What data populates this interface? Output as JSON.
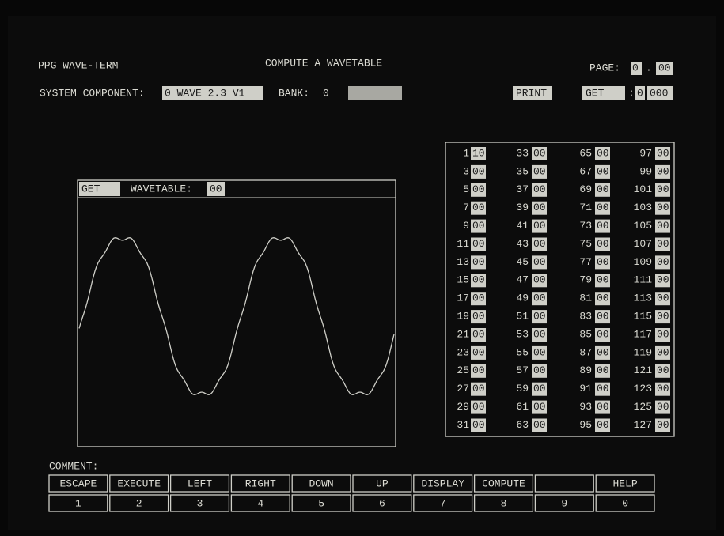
{
  "header": {
    "app_title": "PPG WAVE-TERM",
    "screen_title": "COMPUTE A WAVETABLE",
    "page_label": "PAGE:",
    "page_number": "0",
    "page_separator": ".",
    "page_sub": "00"
  },
  "status": {
    "component_label": "SYSTEM COMPONENT:",
    "component_value": "0 WAVE 2.3 V1",
    "bank_label": "BANK:",
    "bank_value": "0",
    "print_button": "PRINT",
    "get_button": "GET",
    "get_separator": ":",
    "get_value_1": "0",
    "get_value_2": "000"
  },
  "wave_panel": {
    "get_button": "GET",
    "wavetable_label": "WAVETABLE:",
    "wavetable_value": "00"
  },
  "wave_table": {
    "entries": [
      {
        "index": 1,
        "value": "10"
      },
      {
        "index": 3,
        "value": "00"
      },
      {
        "index": 5,
        "value": "00"
      },
      {
        "index": 7,
        "value": "00"
      },
      {
        "index": 9,
        "value": "00"
      },
      {
        "index": 11,
        "value": "00"
      },
      {
        "index": 13,
        "value": "00"
      },
      {
        "index": 15,
        "value": "00"
      },
      {
        "index": 17,
        "value": "00"
      },
      {
        "index": 19,
        "value": "00"
      },
      {
        "index": 21,
        "value": "00"
      },
      {
        "index": 23,
        "value": "00"
      },
      {
        "index": 25,
        "value": "00"
      },
      {
        "index": 27,
        "value": "00"
      },
      {
        "index": 29,
        "value": "00"
      },
      {
        "index": 31,
        "value": "00"
      },
      {
        "index": 33,
        "value": "00"
      },
      {
        "index": 35,
        "value": "00"
      },
      {
        "index": 37,
        "value": "00"
      },
      {
        "index": 39,
        "value": "00"
      },
      {
        "index": 41,
        "value": "00"
      },
      {
        "index": 43,
        "value": "00"
      },
      {
        "index": 45,
        "value": "00"
      },
      {
        "index": 47,
        "value": "00"
      },
      {
        "index": 49,
        "value": "00"
      },
      {
        "index": 51,
        "value": "00"
      },
      {
        "index": 53,
        "value": "00"
      },
      {
        "index": 55,
        "value": "00"
      },
      {
        "index": 57,
        "value": "00"
      },
      {
        "index": 59,
        "value": "00"
      },
      {
        "index": 61,
        "value": "00"
      },
      {
        "index": 63,
        "value": "00"
      },
      {
        "index": 65,
        "value": "00"
      },
      {
        "index": 67,
        "value": "00"
      },
      {
        "index": 69,
        "value": "00"
      },
      {
        "index": 71,
        "value": "00"
      },
      {
        "index": 73,
        "value": "00"
      },
      {
        "index": 75,
        "value": "00"
      },
      {
        "index": 77,
        "value": "00"
      },
      {
        "index": 79,
        "value": "00"
      },
      {
        "index": 81,
        "value": "00"
      },
      {
        "index": 83,
        "value": "00"
      },
      {
        "index": 85,
        "value": "00"
      },
      {
        "index": 87,
        "value": "00"
      },
      {
        "index": 89,
        "value": "00"
      },
      {
        "index": 91,
        "value": "00"
      },
      {
        "index": 93,
        "value": "00"
      },
      {
        "index": 95,
        "value": "00"
      },
      {
        "index": 97,
        "value": "00"
      },
      {
        "index": 99,
        "value": "00"
      },
      {
        "index": 101,
        "value": "00"
      },
      {
        "index": 103,
        "value": "00"
      },
      {
        "index": 105,
        "value": "00"
      },
      {
        "index": 107,
        "value": "00"
      },
      {
        "index": 109,
        "value": "00"
      },
      {
        "index": 111,
        "value": "00"
      },
      {
        "index": 113,
        "value": "00"
      },
      {
        "index": 115,
        "value": "00"
      },
      {
        "index": 117,
        "value": "00"
      },
      {
        "index": 119,
        "value": "00"
      },
      {
        "index": 121,
        "value": "00"
      },
      {
        "index": 123,
        "value": "00"
      },
      {
        "index": 125,
        "value": "00"
      },
      {
        "index": 127,
        "value": "00"
      }
    ]
  },
  "comment_label": "COMMENT:",
  "keys": [
    {
      "label": "ESCAPE",
      "number": "1"
    },
    {
      "label": "EXECUTE",
      "number": "2"
    },
    {
      "label": "LEFT",
      "number": "3"
    },
    {
      "label": "RIGHT",
      "number": "4"
    },
    {
      "label": "DOWN",
      "number": "5"
    },
    {
      "label": "UP",
      "number": "6"
    },
    {
      "label": "DISPLAY",
      "number": "7"
    },
    {
      "label": "COMPUTE",
      "number": "8"
    },
    {
      "number": "9"
    },
    {
      "label": "HELP",
      "number": "0"
    }
  ]
}
